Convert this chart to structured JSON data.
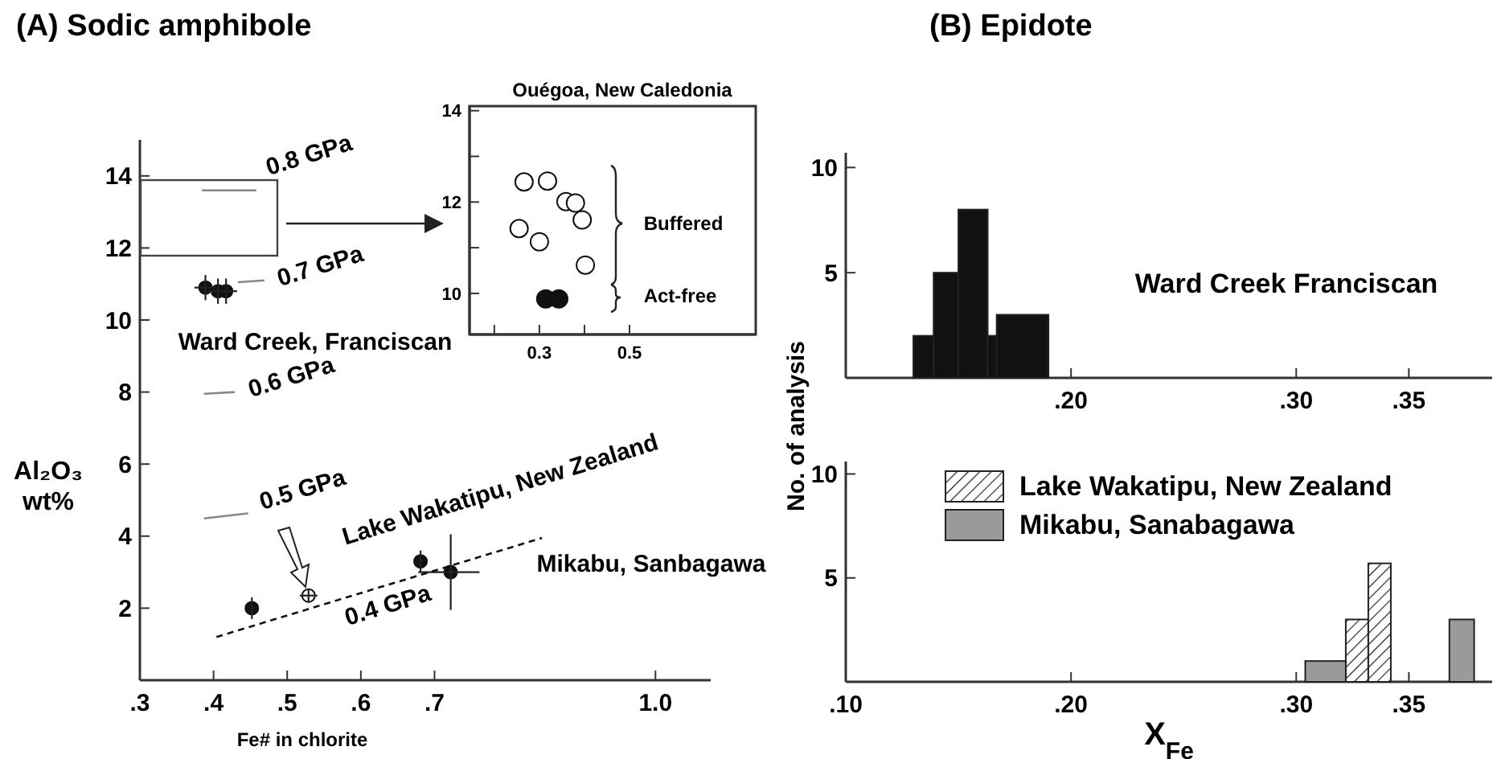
{
  "chart_data": [
    {
      "type": "scatter",
      "title": "(A) Sodic amphibole",
      "xlabel": "Fe# in chlorite",
      "ylabel": "Al₂O₃ wt%",
      "xlim": [
        0.3,
        1.075
      ],
      "ylim": [
        0,
        15
      ],
      "xticks": [
        {
          "value": 0.3,
          "label": ".3"
        },
        {
          "value": 0.4,
          "label": ".4"
        },
        {
          "value": 0.5,
          "label": ".5"
        },
        {
          "value": 0.6,
          "label": ".6"
        },
        {
          "value": 0.7,
          "label": ".7"
        },
        {
          "value": 1.0,
          "label": "1.0"
        }
      ],
      "yticks": [
        2,
        4,
        6,
        8,
        10,
        12,
        14
      ],
      "series": [
        {
          "type": "scatter",
          "marker": "circle",
          "color": "#111111",
          "x": [
            0.389,
            0.406,
            0.417,
            0.452,
            0.681,
            0.722
          ],
          "values": [
            10.9,
            10.8,
            10.8,
            2.0,
            3.3,
            3.0
          ],
          "errors": [
            0.35,
            0.35,
            0.35,
            0.3,
            0.3,
            [
              1.95,
              4.05
            ]
          ],
          "xerrors": [
            0.015,
            0.015,
            0.015,
            null,
            null,
            [
              0.678,
              0.761
            ]
          ]
        },
        {
          "type": "scatter",
          "marker": "circle",
          "color": "#ffffff",
          "x": [
            0.529
          ],
          "values": [
            2.35
          ],
          "errors": [
            0.2
          ],
          "xerrors": [
            0.012
          ]
        },
        {
          "type": "line",
          "marker": "none",
          "color": "#888888",
          "x": [
            0.384,
            0.458
          ],
          "values": [
            13.6,
            13.6
          ]
        },
        {
          "type": "line",
          "marker": "none",
          "color": "#888888",
          "x": [
            0.433,
            0.469
          ],
          "values": [
            11.05,
            11.1
          ]
        },
        {
          "type": "line",
          "marker": "none",
          "color": "#888888",
          "x": [
            0.387,
            0.429
          ],
          "values": [
            7.95,
            8.0
          ]
        },
        {
          "type": "line",
          "marker": "none",
          "color": "#888888",
          "x": [
            0.387,
            0.447
          ],
          "values": [
            4.49,
            4.63
          ]
        },
        {
          "type": "line",
          "marker": "none",
          "color": "#111111",
          "line_style": "dashed",
          "x": [
            0.404,
            0.846
          ],
          "values": [
            1.2,
            3.95
          ]
        }
      ],
      "annotations": [
        "0.8 GPa",
        "0.7 GPa",
        "0.6 GPa",
        "0.5 GPa",
        "0.4 GPa",
        "Lake Wakatipu, New Zealand",
        "Ward Creek, Franciscan",
        "Mikabu, Sanbagawa"
      ]
    },
    {
      "type": "scatter",
      "title": "Ouégoa, New Caledonia",
      "xlim": [
        0.145,
        0.78
      ],
      "ylim": [
        9.1,
        14.1
      ],
      "xticks": [
        {
          "value": 0.2,
          "label": null
        },
        {
          "value": 0.3,
          "label": "0.3"
        },
        {
          "value": 0.4,
          "label": null
        },
        {
          "value": 0.5,
          "label": "0.5"
        }
      ],
      "yticks": [
        {
          "value": 10,
          "label": "10"
        },
        {
          "value": 11,
          "label": null
        },
        {
          "value": 12,
          "label": "12"
        },
        {
          "value": 13,
          "label": null
        },
        {
          "value": 14,
          "label": "14"
        }
      ],
      "marker": "circle",
      "series": [
        {
          "color": "#ffffff",
          "x": [
            0.266,
            0.318,
            0.359,
            0.38,
            0.395,
            0.255,
            0.3,
            0.402
          ],
          "values": [
            12.44,
            12.46,
            12.01,
            11.98,
            11.61,
            11.42,
            11.13,
            10.62
          ]
        },
        {
          "color": "#111111",
          "x": [
            0.314,
            0.343
          ],
          "values": [
            9.88,
            9.88
          ]
        }
      ],
      "annotations": [
        "Buffered",
        "Act-free"
      ]
    },
    {
      "type": "histogram",
      "title": "(B) Epidote",
      "ylabel": "No. of analysis",
      "xlim": [
        0.1,
        0.387
      ],
      "ylim": [
        0,
        10.7
      ],
      "xticks": [
        {
          "value": 0.2,
          "label": ".20"
        },
        {
          "value": 0.3,
          "label": ".30"
        },
        {
          "value": 0.35,
          "label": ".35"
        }
      ],
      "yticks": [
        5,
        10
      ],
      "color": "#111111",
      "bins": [
        0.13,
        0.139,
        0.15,
        0.163,
        0.167,
        0.19
      ],
      "values": [
        2,
        5,
        8,
        2,
        3
      ],
      "annotations": [
        "Ward Creek Franciscan"
      ]
    },
    {
      "type": "histogram",
      "xlabel": "X$_{Fe}$",
      "xlim": [
        0.1,
        0.387
      ],
      "ylim": [
        0,
        10.6
      ],
      "xticks": [
        {
          "value": 0.1,
          "label": ".10"
        },
        {
          "value": 0.2,
          "label": ".20"
        },
        {
          "value": 0.3,
          "label": ".30"
        },
        {
          "value": 0.35,
          "label": ".35"
        }
      ],
      "yticks": [
        5,
        10
      ],
      "legend": "top left",
      "bins": [
        0.304,
        0.322,
        0.332,
        0.342,
        0.368,
        0.379
      ],
      "series": [
        {
          "name": "Lake Wakatipu, New Zealand",
          "color": "#222222",
          "values": [
            null,
            3,
            5.7,
            null,
            null
          ]
        },
        {
          "name": "Mikabu, Sanabagawa",
          "color": "#9a9a9a",
          "values": [
            1,
            null,
            null,
            null,
            3
          ]
        }
      ]
    }
  ]
}
